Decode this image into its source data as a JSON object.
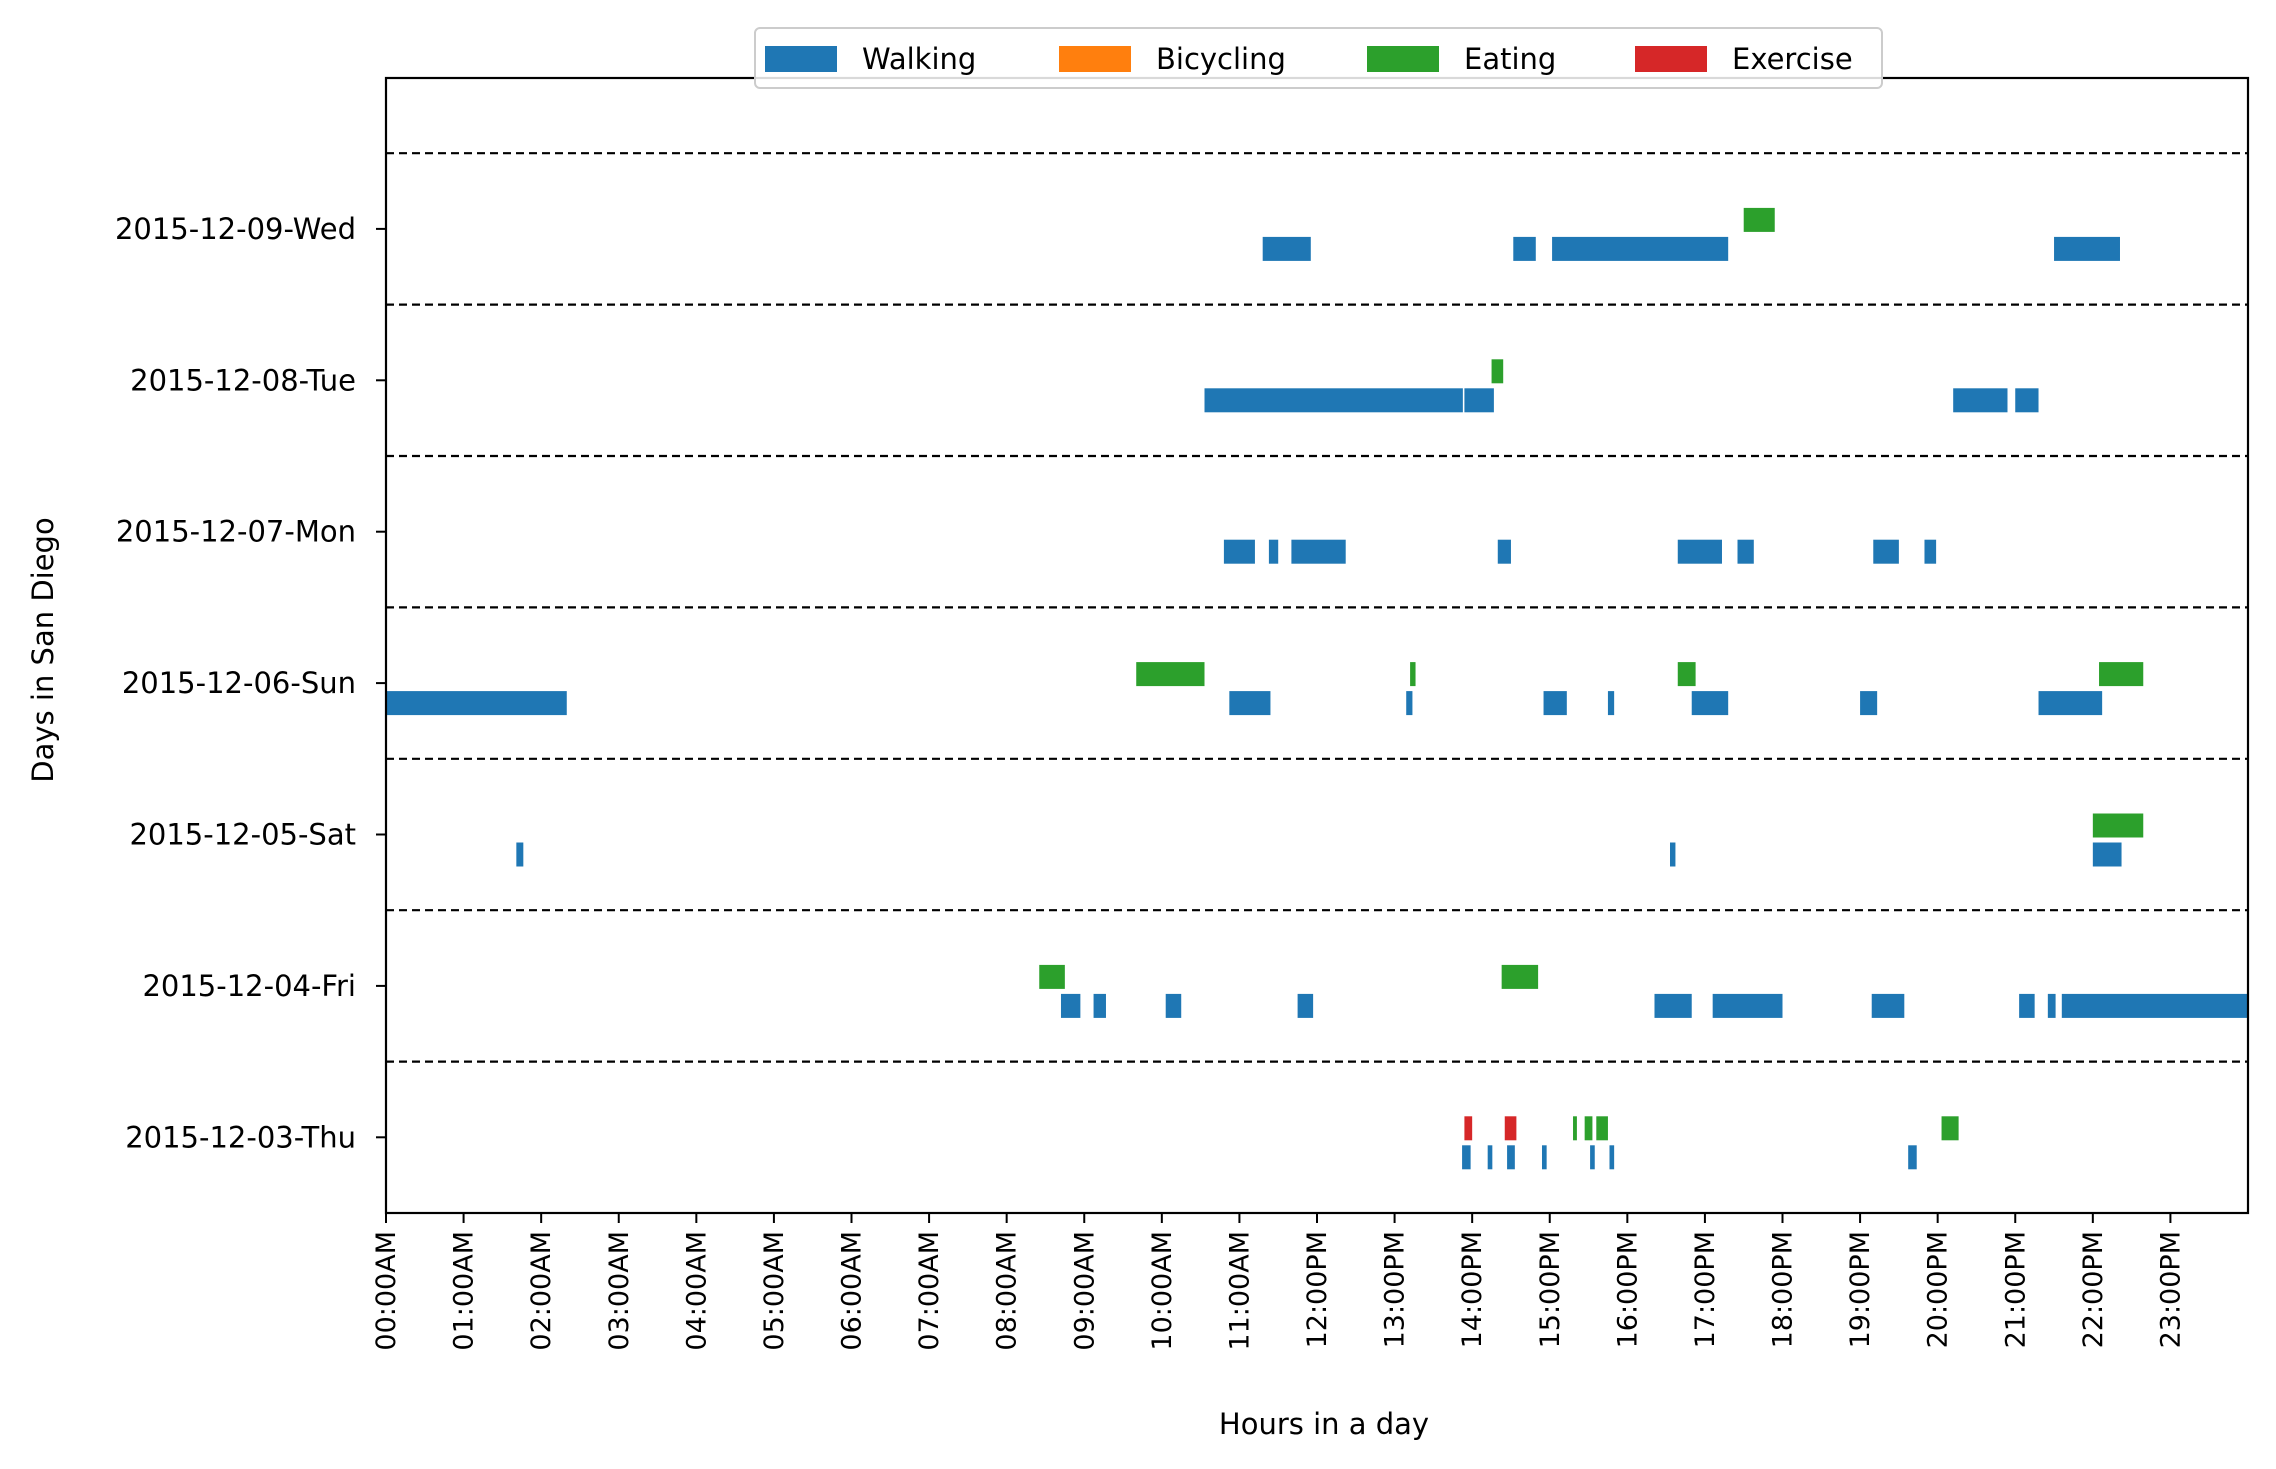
{
  "chart_data": {
    "type": "gantt",
    "xlabel": "Hours in a day",
    "ylabel": "Days in San Diego",
    "xlim": [
      0,
      24
    ],
    "x_tick_labels": [
      "00:00AM",
      "01:00AM",
      "02:00AM",
      "03:00AM",
      "04:00AM",
      "05:00AM",
      "06:00AM",
      "07:00AM",
      "08:00AM",
      "09:00AM",
      "10:00AM",
      "11:00AM",
      "12:00PM",
      "13:00PM",
      "14:00PM",
      "15:00PM",
      "16:00PM",
      "17:00PM",
      "18:00PM",
      "19:00PM",
      "20:00PM",
      "21:00PM",
      "22:00PM",
      "23:00PM"
    ],
    "days": [
      "2015-12-03-Thu",
      "2015-12-04-Fri",
      "2015-12-05-Sat",
      "2015-12-06-Sun",
      "2015-12-07-Mon",
      "2015-12-08-Tue",
      "2015-12-09-Wed"
    ],
    "legend_position": "top-center",
    "legend": [
      {
        "name": "Walking",
        "color": "#1f77b4"
      },
      {
        "name": "Bicycling",
        "color": "#ff7f0e"
      },
      {
        "name": "Eating",
        "color": "#2ca02c"
      },
      {
        "name": "Exercise",
        "color": "#d62728"
      }
    ],
    "activities": [
      {
        "day": "2015-12-09-Wed",
        "type": "Walking",
        "intervals": [
          [
            11.3,
            11.92
          ],
          [
            14.53,
            14.82
          ],
          [
            15.03,
            17.3
          ],
          [
            21.5,
            22.35
          ]
        ]
      },
      {
        "day": "2015-12-09-Wed",
        "type": "Eating",
        "intervals": [
          [
            17.5,
            17.9
          ]
        ]
      },
      {
        "day": "2015-12-08-Tue",
        "type": "Walking",
        "intervals": [
          [
            10.55,
            13.88
          ],
          [
            13.9,
            14.28
          ],
          [
            20.2,
            20.9
          ],
          [
            21.0,
            21.3
          ]
        ]
      },
      {
        "day": "2015-12-08-Tue",
        "type": "Eating",
        "intervals": [
          [
            14.25,
            14.4
          ]
        ]
      },
      {
        "day": "2015-12-07-Mon",
        "type": "Walking",
        "intervals": [
          [
            10.8,
            11.2
          ],
          [
            11.38,
            11.5
          ],
          [
            11.67,
            12.37
          ],
          [
            14.33,
            14.5
          ],
          [
            16.65,
            17.22
          ],
          [
            17.42,
            17.63
          ],
          [
            19.17,
            19.5
          ],
          [
            19.83,
            19.98
          ]
        ]
      },
      {
        "day": "2015-12-06-Sun",
        "type": "Walking",
        "intervals": [
          [
            0.0,
            2.33
          ],
          [
            10.87,
            11.4
          ],
          [
            13.15,
            13.23
          ],
          [
            14.92,
            15.22
          ],
          [
            15.75,
            15.83
          ],
          [
            16.83,
            17.3
          ],
          [
            19.0,
            19.22
          ],
          [
            21.3,
            22.12
          ]
        ]
      },
      {
        "day": "2015-12-06-Sun",
        "type": "Eating",
        "intervals": [
          [
            9.67,
            10.55
          ],
          [
            13.2,
            13.27
          ],
          [
            16.65,
            16.88
          ],
          [
            22.08,
            22.65
          ]
        ]
      },
      {
        "day": "2015-12-05-Sat",
        "type": "Walking",
        "intervals": [
          [
            1.68,
            1.77
          ],
          [
            16.55,
            16.62
          ],
          [
            22.0,
            22.37
          ]
        ]
      },
      {
        "day": "2015-12-05-Sat",
        "type": "Eating",
        "intervals": [
          [
            22.0,
            22.65
          ]
        ]
      },
      {
        "day": "2015-12-04-Fri",
        "type": "Walking",
        "intervals": [
          [
            8.7,
            8.95
          ],
          [
            9.12,
            9.28
          ],
          [
            10.05,
            10.25
          ],
          [
            11.75,
            11.95
          ],
          [
            16.35,
            16.83
          ],
          [
            17.1,
            18.0
          ],
          [
            19.15,
            19.57
          ],
          [
            21.05,
            21.25
          ],
          [
            21.42,
            21.52
          ],
          [
            21.6,
            24.0
          ]
        ]
      },
      {
        "day": "2015-12-04-Fri",
        "type": "Eating",
        "intervals": [
          [
            8.42,
            8.75
          ],
          [
            14.38,
            14.85
          ]
        ]
      },
      {
        "day": "2015-12-03-Thu",
        "type": "Walking",
        "intervals": [
          [
            13.87,
            13.98
          ],
          [
            14.2,
            14.26
          ],
          [
            14.45,
            14.55
          ],
          [
            14.9,
            14.96
          ],
          [
            15.52,
            15.58
          ],
          [
            15.77,
            15.83
          ],
          [
            19.62,
            19.73
          ]
        ]
      },
      {
        "day": "2015-12-03-Thu",
        "type": "Eating",
        "intervals": [
          [
            15.3,
            15.35
          ],
          [
            15.45,
            15.55
          ],
          [
            15.6,
            15.75
          ],
          [
            20.05,
            20.27
          ]
        ]
      },
      {
        "day": "2015-12-03-Thu",
        "type": "Exercise",
        "intervals": [
          [
            13.9,
            14.0
          ],
          [
            14.42,
            14.57
          ]
        ]
      }
    ]
  }
}
